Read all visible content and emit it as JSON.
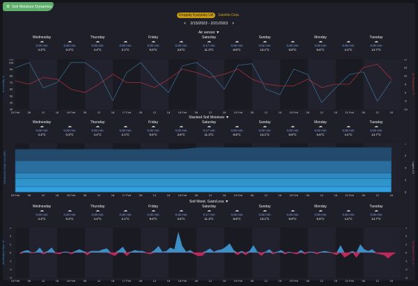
{
  "app": {
    "title": "Soil Moisture Dynamics",
    "icon": "droplet-gear-icon"
  },
  "header": {
    "active_source": "Droppity Kyslytsky UA",
    "other_source": "Satellite Data",
    "date_range": "2/15/2023 - 2/21/2023",
    "prev": "<",
    "next": ">"
  },
  "weather": {
    "days": [
      "Wednesday",
      "",
      "Thursday",
      "",
      "Friday",
      "",
      "Saturday",
      "",
      "Sunday",
      "",
      "Monday",
      "",
      "Tuesday"
    ],
    "rain": [
      "0.00 mm",
      "0.00 mm",
      "0.00 mm",
      "0.00 mm",
      "0.00 mm",
      "0.00 mm",
      "0.17 mm",
      "0.00 mm",
      "0.02 mm",
      "0.00 mm",
      "0.00 mm",
      "0.00 mm",
      "0.00 mm"
    ],
    "temp": [
      "4.3°C",
      "0.3°C",
      "4.4°C",
      "2.1°C",
      "9.0°C",
      "3.6°C",
      "11.3°C",
      "8.8°C",
      "13.1°C",
      "8.9°C",
      "6.6°C",
      "4.4°C",
      "14.7°C"
    ],
    "icon": "cloud-sun-icon"
  },
  "sections": [
    {
      "title": "Air sensor ▼"
    },
    {
      "title": "Stacked Soil Moisture ▼"
    },
    {
      "title": "Soil Moist. Gain/Loss ▼"
    }
  ],
  "x_ticks": [
    "15 Feb",
    "06",
    "12",
    "18",
    "16 Feb",
    "06",
    "12",
    "18",
    "17 Feb",
    "06",
    "12",
    "18",
    "18 Feb",
    "06",
    "12",
    "18",
    "19 Feb",
    "06",
    "12",
    "18",
    "20 Feb",
    "06",
    "12",
    "18",
    "21 Feb",
    "06",
    "12",
    "18"
  ],
  "chart_data": [
    {
      "type": "line",
      "title": "Air sensor",
      "x_hours_step": 6,
      "xlim_hours": [
        0,
        166
      ],
      "ylabel": "Air Humidity, %",
      "ylim": [
        30,
        105
      ],
      "yticks": [
        30,
        40,
        50,
        60,
        70,
        80,
        90,
        100,
        105
      ],
      "y2label": "Air Temperature, °C",
      "y2lim": [
        -10,
        20
      ],
      "y2ticks": [
        -10,
        -5,
        0,
        5,
        10,
        15,
        20
      ],
      "series": [
        {
          "name": "Air Humidity",
          "axis": "left",
          "color": "#3f86b0",
          "values": [
            92,
            100,
            62,
            70,
            100,
            100,
            85,
            43,
            85,
            100,
            75,
            55,
            95,
            100,
            85,
            60,
            96,
            98,
            60,
            52,
            90,
            82,
            40,
            62,
            82,
            86,
            42,
            73
          ]
        },
        {
          "name": "Air Temperature",
          "axis": "right",
          "color": "#d0383c",
          "values": [
            7,
            5,
            9,
            8,
            2,
            0,
            5,
            11,
            6,
            6,
            3,
            8,
            14,
            12,
            9,
            11,
            14,
            8,
            5,
            4,
            4,
            8,
            3,
            5,
            5,
            15,
            17,
            8
          ]
        }
      ]
    },
    {
      "type": "area",
      "title": "Stacked Soil Moisture",
      "xlim_hours": [
        0,
        166
      ],
      "ylabel": "Soil Moisture Delta, from 80%",
      "y2label": "Layers 1-5",
      "y2ticks": [
        1,
        2,
        3,
        4,
        5
      ],
      "layers": [
        {
          "name": "Layer 1",
          "top_start": 1.5,
          "top_end": 1.35,
          "color": "#234a6a"
        },
        {
          "name": "Layer 2",
          "top_start": 2.45,
          "top_end": 2.45,
          "color": "#2a6e9e"
        },
        {
          "name": "Layer 3",
          "top_start": 3.45,
          "top_end": 3.45,
          "color": "#2d89c0"
        },
        {
          "name": "Layer 4",
          "top_start": 3.9,
          "top_end": 3.9,
          "color": "#2f93cc"
        },
        {
          "name": "Layer 5",
          "top_start": 4.55,
          "top_end": 4.55,
          "color": "#31a0dc"
        }
      ]
    },
    {
      "type": "area",
      "title": "Soil Moist. Gain/Loss",
      "xlim_hours": [
        0,
        166
      ],
      "ylabel": "Soil Moisture Gain, %",
      "y2label": "Soil Moisture Loss, %",
      "ylim": [
        -3,
        3
      ],
      "yticks": [
        -3,
        -2,
        -1,
        0,
        1,
        2,
        3
      ],
      "gain_color": "#3b8fc4",
      "loss_color": "#c0285a",
      "values": [
        -0.2,
        0.2,
        0.3,
        -0.1,
        0.1,
        0.6,
        -0.2,
        0.2,
        0.6,
        -0.1,
        -0.2,
        0.1,
        0.1,
        -0.2,
        0.2,
        0.4,
        0.2,
        -0.3,
        0.2,
        0.2,
        0.2,
        0.4,
        0.5,
        -0.2,
        -0.4,
        0.3,
        0.7,
        -0.4,
        0.1,
        0.3,
        0.2,
        0.2,
        -0.1,
        -0.2,
        0.3,
        0.8,
        0.1,
        0.2,
        0.6,
        0.4,
        2.5,
        0.8,
        0.1,
        0.3,
        -0.2,
        -0.4,
        -0.4,
        0.2,
        0.5,
        0.1,
        0.3,
        0.4,
        0.7,
        1.1,
        0.3,
        -0.3,
        0.2,
        -0.3,
        0.2,
        0.9,
        0.1,
        -0.4,
        0.1,
        0.4,
        -0.2,
        0.1,
        0.3,
        -0.2,
        0.1,
        -0.1,
        -0.2,
        0.3,
        -0.2,
        0.1,
        0.1,
        -0.2,
        0.1,
        0.2,
        0.1,
        -0.1,
        -0.3,
        0.9,
        -0.6,
        -0.3,
        0.2,
        -0.6,
        1.0,
        0.4,
        0.2,
        0.4,
        -0.1,
        -0.2,
        -0.3,
        -0.7,
        -0.3,
        0
      ]
    }
  ]
}
